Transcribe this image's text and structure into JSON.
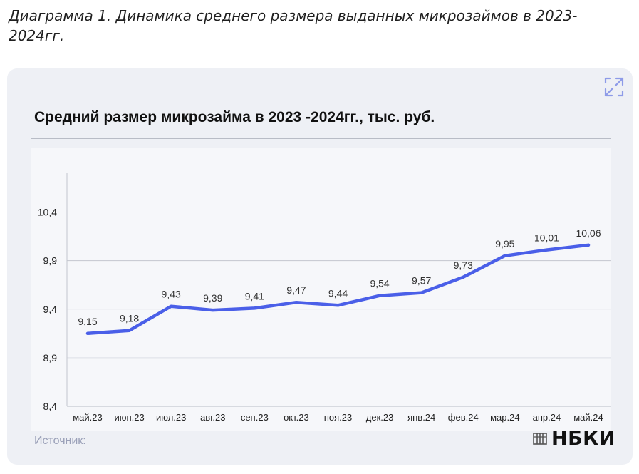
{
  "caption": "Диаграмма 1. Динамика среднего размера выданных микрозаймов в 2023-2024гг.",
  "source_label": "Источник:",
  "logo_text": "НБКИ",
  "icons": {
    "expand": "expand-icon",
    "logo": "nbki-logo-icon"
  },
  "colors": {
    "line": "#4a5fe8",
    "card": "#eef0f5",
    "grid": "#c3c6ce"
  },
  "chart_data": {
    "type": "line",
    "title": "Средний размер микрозайма в 2023 -2024гг., тыс. руб.",
    "xlabel": "",
    "ylabel": "",
    "categories": [
      "май.23",
      "июн.23",
      "июл.23",
      "авг.23",
      "сен.23",
      "окт.23",
      "ноя.23",
      "дек.23",
      "янв.24",
      "фев.24",
      "мар.24",
      "апр.24",
      "май.24"
    ],
    "series": [
      {
        "values": [
          9.15,
          9.18,
          9.43,
          9.39,
          9.41,
          9.47,
          9.44,
          9.54,
          9.57,
          9.73,
          9.95,
          10.01,
          10.06
        ]
      }
    ],
    "data_labels": [
      "9,15",
      "9,18",
      "9,43",
      "9,39",
      "9,41",
      "9,47",
      "9,44",
      "9,54",
      "9,57",
      "9,73",
      "9,95",
      "10,01",
      "10,06"
    ],
    "y_ticks": [
      8.4,
      8.9,
      9.4,
      9.9,
      10.4
    ],
    "y_tick_labels": [
      "8,4",
      "8,9",
      "9,4",
      "9,9",
      "10,4"
    ],
    "ylim": [
      8.4,
      10.8
    ],
    "grid": "horizontal",
    "legend": "none"
  }
}
